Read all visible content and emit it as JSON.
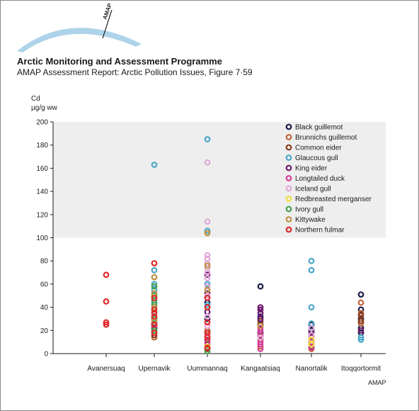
{
  "header": {
    "org": "Arctic Monitoring and Assessment Programme",
    "report": "AMAP Assessment Report: Arctic Pollution Issues, Figure 7·59",
    "logo_text": "AMAP"
  },
  "footer": {
    "credit": "AMAP"
  },
  "colors": {
    "Black guillemot": "#1c1c4a",
    "Brunnichs guillemot": "#c0663a",
    "Common eider": "#8b3a1e",
    "Glaucous gull": "#4aa6c8",
    "King eider": "#6e1a6e",
    "Longtailed duck": "#d8409a",
    "Iceland gull": "#e0a8d8",
    "Redbreasted merganser": "#f0e040",
    "Ivory gull": "#4aa050",
    "Kittywake": "#c09040",
    "Northern fulmar": "#e02828",
    "highlight_band": "#eeeeee"
  },
  "chart_data": {
    "type": "scatter",
    "ylabel": [
      "Cd",
      "µg/g ww"
    ],
    "ylim": [
      0,
      200
    ],
    "yticks": [
      0,
      20,
      40,
      60,
      80,
      100,
      120,
      140,
      160,
      180,
      200
    ],
    "highlight_band": [
      100,
      200
    ],
    "categories": [
      "Avanersuaq",
      "Upernavik",
      "Uummannaq",
      "Kangaatsiaq",
      "Nanortalik",
      "Itoqqortormit"
    ],
    "legend_position": "top-right",
    "series": [
      {
        "name": "Black guillemot",
        "points": [
          [
            "Upernavik",
            22
          ],
          [
            "Uummannaq",
            44
          ],
          [
            "Uummannaq",
            30
          ],
          [
            "Uummannaq",
            18
          ],
          [
            "Kangaatsiaq",
            58
          ],
          [
            "Kangaatsiaq",
            32
          ],
          [
            "Kangaatsiaq",
            25
          ],
          [
            "Kangaatsiaq",
            18
          ],
          [
            "Nanortalik",
            25
          ],
          [
            "Nanortalik",
            20
          ],
          [
            "Itoqqortormit",
            51
          ],
          [
            "Itoqqortormit",
            38
          ],
          [
            "Itoqqortormit",
            30
          ],
          [
            "Itoqqortormit",
            22
          ],
          [
            "Itoqqortormit",
            18
          ]
        ]
      },
      {
        "name": "Brunnichs guillemot",
        "points": [
          [
            "Upernavik",
            30
          ],
          [
            "Upernavik",
            14
          ],
          [
            "Uummannaq",
            20
          ],
          [
            "Uummannaq",
            8
          ],
          [
            "Kangaatsiaq",
            12
          ],
          [
            "Kangaatsiaq",
            6
          ],
          [
            "Nanortalik",
            15
          ],
          [
            "Nanortalik",
            8
          ],
          [
            "Nanortalik",
            4
          ],
          [
            "Itoqqortormit",
            44
          ],
          [
            "Itoqqortormit",
            35
          ],
          [
            "Itoqqortormit",
            26
          ]
        ]
      },
      {
        "name": "Common eider",
        "points": [
          [
            "Upernavik",
            16
          ],
          [
            "Upernavik",
            20
          ],
          [
            "Uummannaq",
            4
          ],
          [
            "Uummannaq",
            12
          ],
          [
            "Kangaatsiaq",
            28
          ],
          [
            "Kangaatsiaq",
            15
          ],
          [
            "Nanortalik",
            12
          ],
          [
            "Nanortalik",
            6
          ],
          [
            "Itoqqortormit",
            33
          ],
          [
            "Itoqqortormit",
            28
          ]
        ]
      },
      {
        "name": "Glaucous gull",
        "points": [
          [
            "Upernavik",
            163
          ],
          [
            "Upernavik",
            72
          ],
          [
            "Upernavik",
            60
          ],
          [
            "Upernavik",
            55
          ],
          [
            "Upernavik",
            44
          ],
          [
            "Upernavik",
            36
          ],
          [
            "Uummannaq",
            185
          ],
          [
            "Uummannaq",
            106
          ],
          [
            "Uummannaq",
            60
          ],
          [
            "Uummannaq",
            42
          ],
          [
            "Nanortalik",
            80
          ],
          [
            "Nanortalik",
            72
          ],
          [
            "Nanortalik",
            40
          ],
          [
            "Nanortalik",
            26
          ],
          [
            "Nanortalik",
            22
          ],
          [
            "Itoqqortormit",
            14
          ],
          [
            "Itoqqortormit",
            12
          ]
        ]
      },
      {
        "name": "King eider",
        "points": [
          [
            "Upernavik",
            26
          ],
          [
            "Uummannaq",
            68
          ],
          [
            "Uummannaq",
            52
          ],
          [
            "Uummannaq",
            36
          ],
          [
            "Kangaatsiaq",
            40
          ],
          [
            "Kangaatsiaq",
            38
          ],
          [
            "Kangaatsiaq",
            35
          ],
          [
            "Kangaatsiaq",
            30
          ],
          [
            "Nanortalik",
            18
          ],
          [
            "Itoqqortormit",
            20
          ]
        ]
      },
      {
        "name": "Longtailed duck",
        "points": [
          [
            "Upernavik",
            24
          ],
          [
            "Uummannaq",
            15
          ],
          [
            "Uummannaq",
            10
          ],
          [
            "Kangaatsiaq",
            22
          ],
          [
            "Kangaatsiaq",
            20
          ],
          [
            "Kangaatsiaq",
            16
          ],
          [
            "Kangaatsiaq",
            10
          ],
          [
            "Kangaatsiaq",
            8
          ],
          [
            "Kangaatsiaq",
            4
          ],
          [
            "Nanortalik",
            10
          ],
          [
            "Nanortalik",
            5
          ]
        ]
      },
      {
        "name": "Iceland gull",
        "points": [
          [
            "Uummannaq",
            165
          ],
          [
            "Uummannaq",
            114
          ],
          [
            "Uummannaq",
            85
          ],
          [
            "Uummannaq",
            82
          ],
          [
            "Uummannaq",
            78
          ],
          [
            "Uummannaq",
            74
          ],
          [
            "Uummannaq",
            70
          ],
          [
            "Uummannaq",
            65
          ],
          [
            "Uummannaq",
            58
          ],
          [
            "Uummannaq",
            50
          ],
          [
            "Uummannaq",
            32
          ],
          [
            "Uummannaq",
            24
          ],
          [
            "Kangaatsiaq",
            14
          ],
          [
            "Nanortalik",
            22
          ],
          [
            "Nanortalik",
            16
          ]
        ]
      },
      {
        "name": "Redbreasted merganser",
        "points": [
          [
            "Uummannaq",
            6
          ],
          [
            "Nanortalik",
            12
          ],
          [
            "Nanortalik",
            8
          ]
        ]
      },
      {
        "name": "Ivory gull",
        "points": [
          [
            "Upernavik",
            58
          ],
          [
            "Upernavik",
            50
          ],
          [
            "Upernavik",
            46
          ],
          [
            "Upernavik",
            42
          ],
          [
            "Upernavik",
            30
          ],
          [
            "Upernavik",
            20
          ],
          [
            "Upernavik",
            18
          ],
          [
            "Uummannaq",
            2
          ]
        ]
      },
      {
        "name": "Kittywake",
        "points": [
          [
            "Upernavik",
            66
          ],
          [
            "Upernavik",
            52
          ],
          [
            "Upernavik",
            40
          ],
          [
            "Upernavik",
            28
          ],
          [
            "Uummannaq",
            104
          ],
          [
            "Uummannaq",
            76
          ],
          [
            "Uummannaq",
            55
          ],
          [
            "Kangaatsiaq",
            24
          ]
        ]
      },
      {
        "name": "Northern fulmar",
        "points": [
          [
            "Avanersuaq",
            68
          ],
          [
            "Avanersuaq",
            45
          ],
          [
            "Avanersuaq",
            27
          ],
          [
            "Avanersuaq",
            25
          ],
          [
            "Upernavik",
            78
          ],
          [
            "Upernavik",
            48
          ],
          [
            "Upernavik",
            38
          ],
          [
            "Upernavik",
            35
          ],
          [
            "Upernavik",
            32
          ],
          [
            "Upernavik",
            25
          ],
          [
            "Upernavik",
            18
          ],
          [
            "Uummannaq",
            48
          ],
          [
            "Uummannaq",
            40
          ],
          [
            "Uummannaq",
            27
          ],
          [
            "Uummannaq",
            18
          ],
          [
            "Uummannaq",
            14
          ],
          [
            "Uummannaq",
            5
          ]
        ]
      }
    ]
  }
}
